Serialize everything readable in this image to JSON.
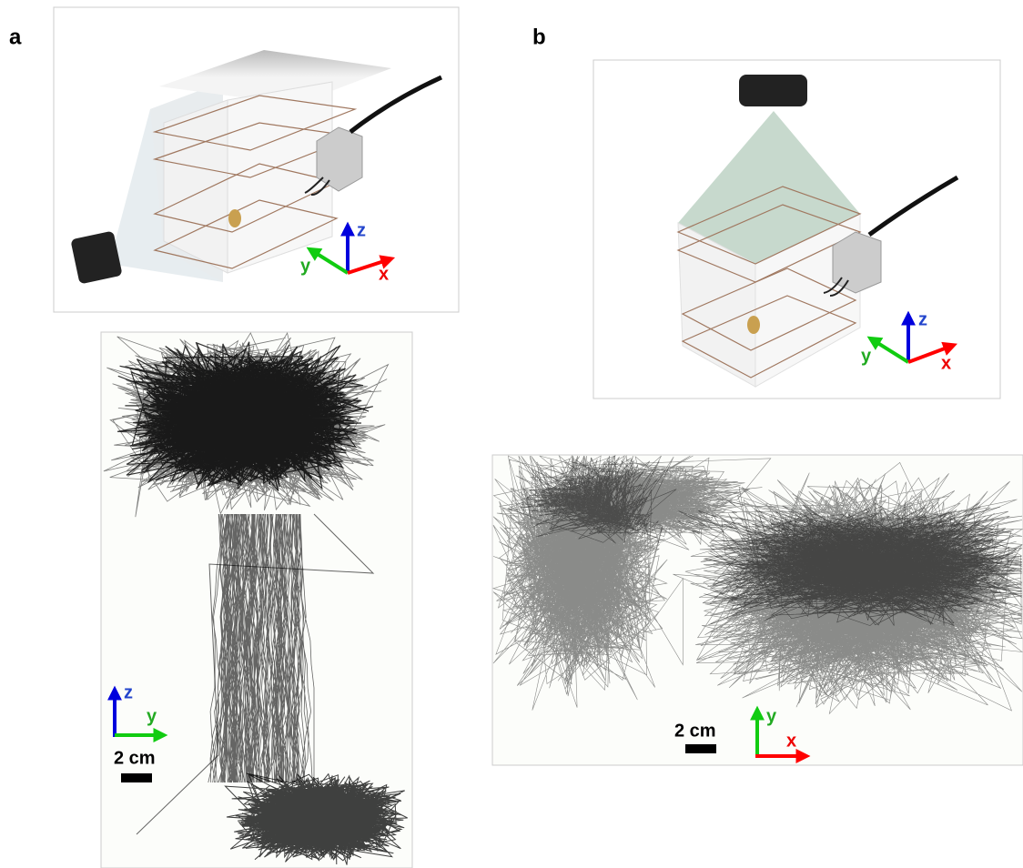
{
  "panel_a": {
    "label": "a",
    "diagram_axes": {
      "z": "z",
      "y": "y",
      "x": "x"
    },
    "trajectory_axes": {
      "vertical": "z",
      "horizontal": "y"
    },
    "scale_bar": "2 cm"
  },
  "panel_b": {
    "label": "b",
    "diagram_axes": {
      "z": "z",
      "y": "y",
      "x": "x"
    },
    "trajectory_axes": {
      "vertical": "y",
      "horizontal": "x"
    },
    "scale_bar": "2 cm"
  }
}
